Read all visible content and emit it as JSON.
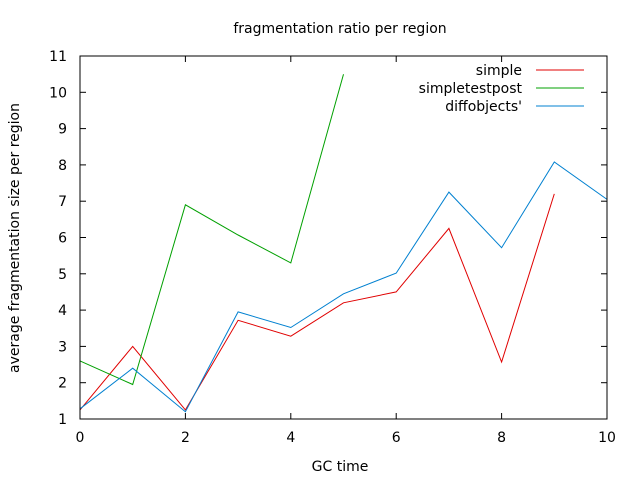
{
  "chart_data": {
    "type": "line",
    "title": "fragmentation ratio per region",
    "xlabel": "GC time",
    "ylabel": "average fragmentation size per region",
    "xlim": [
      0,
      10
    ],
    "ylim": [
      1,
      11
    ],
    "xticks": [
      0,
      2,
      4,
      6,
      8,
      10
    ],
    "yticks": [
      1,
      2,
      3,
      4,
      5,
      6,
      7,
      8,
      9,
      10,
      11
    ],
    "grid": false,
    "legend_position": "top-right",
    "series": [
      {
        "name": "simple",
        "color": "#e00000",
        "x": [
          0,
          1,
          2,
          3,
          4,
          5,
          6,
          7,
          8,
          9
        ],
        "y": [
          1.25,
          3.0,
          1.25,
          3.72,
          3.28,
          4.2,
          4.5,
          6.25,
          2.57,
          7.2
        ]
      },
      {
        "name": "simpletestpost",
        "color": "#00a000",
        "x": [
          0,
          1,
          2,
          3,
          4,
          5
        ],
        "y": [
          2.6,
          1.95,
          6.9,
          6.07,
          5.3,
          10.5
        ]
      },
      {
        "name": "diffobjects'",
        "color": "#0080d0",
        "x": [
          0,
          1,
          2,
          3,
          4,
          5,
          6,
          7,
          8,
          9,
          10
        ],
        "y": [
          1.28,
          2.4,
          1.2,
          3.95,
          3.52,
          4.45,
          5.02,
          7.25,
          5.72,
          8.08,
          7.05
        ]
      }
    ]
  }
}
